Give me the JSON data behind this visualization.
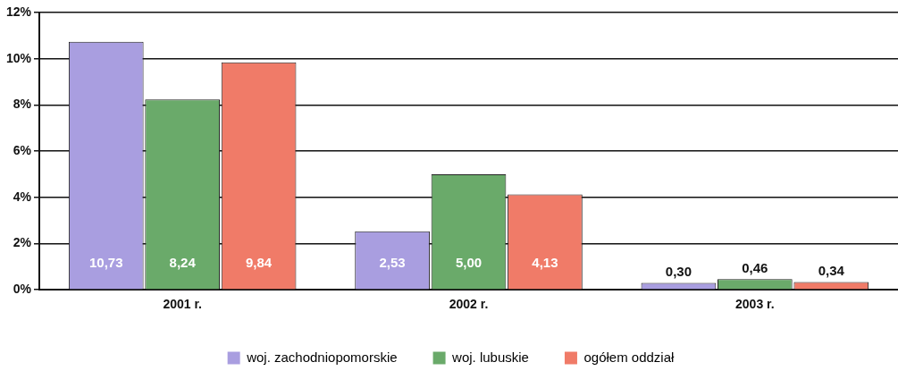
{
  "chart_data": {
    "type": "bar",
    "categories": [
      "2001 r.",
      "2002 r.",
      "2003 r."
    ],
    "series": [
      {
        "name": "woj. zachodniopomorskie",
        "color": "#a99ee0",
        "values": [
          10.73,
          2.53,
          0.3
        ],
        "value_labels": [
          "10,73",
          "2,53",
          "0,30"
        ]
      },
      {
        "name": "woj. lubuskie",
        "color": "#6aaa6a",
        "values": [
          8.24,
          5.0,
          0.46
        ],
        "value_labels": [
          "8,24",
          "5,00",
          "0,46"
        ]
      },
      {
        "name": "ogółem oddział",
        "color": "#f07b68",
        "values": [
          9.84,
          4.13,
          0.34
        ],
        "value_labels": [
          "9,84",
          "4,13",
          "0,34"
        ]
      }
    ],
    "ylim": [
      0,
      12
    ],
    "yticks": [
      {
        "value": 0,
        "label": "0%"
      },
      {
        "value": 2,
        "label": "2%"
      },
      {
        "value": 4,
        "label": "4%"
      },
      {
        "value": 6,
        "label": "6%"
      },
      {
        "value": 8,
        "label": "8%"
      },
      {
        "value": 10,
        "label": "10%"
      },
      {
        "value": 12,
        "label": "12%"
      }
    ],
    "grid": "y",
    "legend": "bottom"
  }
}
